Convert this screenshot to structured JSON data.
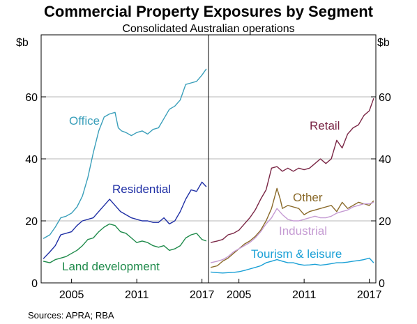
{
  "title": "Commercial Property Exposures by Segment",
  "subtitle": "Consolidated Australian operations",
  "source": "Sources:   APRA; RBA",
  "chart_data": [
    {
      "type": "line",
      "panel": "left",
      "unit_label": "$b",
      "ylim": [
        0,
        80
      ],
      "yticks": [
        0,
        20,
        40,
        60
      ],
      "xlim": [
        2002.2,
        2017.6
      ],
      "xticks": [
        2005,
        2011,
        2017
      ],
      "grid": true,
      "series": [
        {
          "name": "Office",
          "color": "#3a9fba",
          "x": [
            2002.4,
            2003.0,
            2003.5,
            2004.0,
            2004.5,
            2005.0,
            2005.5,
            2006.0,
            2006.5,
            2007.0,
            2007.5,
            2008.0,
            2008.5,
            2009.0,
            2009.3,
            2009.6,
            2010.0,
            2010.5,
            2011.0,
            2011.5,
            2012.0,
            2012.5,
            2013.0,
            2013.5,
            2014.0,
            2014.5,
            2015.0,
            2015.5,
            2016.0,
            2016.5,
            2017.0,
            2017.4
          ],
          "y": [
            14.3,
            15.5,
            18,
            21,
            21.5,
            22.5,
            24.5,
            28,
            34,
            42,
            49,
            53.5,
            54.5,
            55,
            50,
            49,
            48.5,
            47.5,
            48.5,
            49,
            48,
            49.5,
            50,
            53,
            56,
            57,
            59,
            64,
            64.5,
            65,
            67,
            69
          ]
        },
        {
          "name": "Residential",
          "color": "#1f2fa5",
          "x": [
            2002.4,
            2003.0,
            2003.5,
            2004.0,
            2004.5,
            2005.0,
            2005.5,
            2006.0,
            2006.5,
            2007.0,
            2007.5,
            2008.0,
            2008.5,
            2009.0,
            2009.5,
            2010.0,
            2010.5,
            2011.0,
            2011.5,
            2012.0,
            2012.5,
            2013.0,
            2013.5,
            2014.0,
            2014.5,
            2015.0,
            2015.5,
            2016.0,
            2016.5,
            2017.0,
            2017.4
          ],
          "y": [
            7.8,
            10,
            12,
            15.5,
            16,
            16.5,
            18.5,
            20,
            20.5,
            21,
            23,
            25,
            27,
            25,
            23,
            22,
            21,
            20.5,
            20,
            20,
            19.5,
            19.5,
            21,
            19,
            20,
            23,
            27,
            30,
            29.5,
            32.5,
            31
          ]
        },
        {
          "name": "Land development",
          "color": "#1e8a4a",
          "x": [
            2002.4,
            2003.0,
            2003.5,
            2004.0,
            2004.5,
            2005.0,
            2005.5,
            2006.0,
            2006.5,
            2007.0,
            2007.5,
            2008.0,
            2008.5,
            2009.0,
            2009.5,
            2010.0,
            2010.5,
            2011.0,
            2011.5,
            2012.0,
            2012.5,
            2013.0,
            2013.5,
            2014.0,
            2014.5,
            2015.0,
            2015.5,
            2016.0,
            2016.5,
            2017.0,
            2017.4
          ],
          "y": [
            7,
            6.5,
            7.5,
            8,
            8.5,
            9.5,
            10.5,
            12,
            14,
            14.5,
            16.5,
            18,
            19,
            18.5,
            16.5,
            16,
            14.5,
            13,
            13.5,
            13,
            12,
            11.5,
            12,
            10.5,
            11,
            12,
            14.5,
            15.5,
            16,
            14,
            13.5
          ]
        }
      ]
    },
    {
      "type": "line",
      "panel": "right",
      "unit_label": "$b",
      "ylim": [
        0,
        80
      ],
      "yticks": [
        0,
        20,
        40,
        60
      ],
      "xlim": [
        2002.2,
        2017.6
      ],
      "xticks": [
        2005,
        2011,
        2017
      ],
      "grid": true,
      "series": [
        {
          "name": "Retail",
          "color": "#7a2645",
          "x": [
            2002.4,
            2003.0,
            2003.5,
            2004.0,
            2004.5,
            2005.0,
            2005.5,
            2006.0,
            2006.5,
            2007.0,
            2007.5,
            2008.0,
            2008.5,
            2009.0,
            2009.5,
            2010.0,
            2010.5,
            2011.0,
            2011.5,
            2012.0,
            2012.5,
            2013.0,
            2013.5,
            2014.0,
            2014.5,
            2015.0,
            2015.5,
            2016.0,
            2016.5,
            2017.0,
            2017.4
          ],
          "y": [
            13,
            13.5,
            14,
            15.5,
            16,
            17,
            19,
            21,
            23.5,
            27,
            30,
            37,
            37.5,
            36,
            37,
            36,
            37,
            36.5,
            37,
            38.5,
            40,
            38.5,
            40,
            46,
            43.5,
            48,
            50,
            51,
            54,
            55.5,
            59.5
          ]
        },
        {
          "name": "Other",
          "color": "#8a6a2a",
          "x": [
            2002.4,
            2003.0,
            2003.5,
            2004.0,
            2004.5,
            2005.0,
            2005.5,
            2006.0,
            2006.5,
            2007.0,
            2007.5,
            2008.0,
            2008.5,
            2008.8,
            2009.0,
            2009.5,
            2010.0,
            2010.5,
            2011.0,
            2011.5,
            2012.0,
            2012.5,
            2013.0,
            2013.5,
            2014.0,
            2014.5,
            2015.0,
            2015.5,
            2016.0,
            2016.5,
            2017.0,
            2017.4
          ],
          "y": [
            5,
            5.5,
            7,
            8,
            9.5,
            11,
            12.5,
            13.5,
            15,
            17,
            20,
            24,
            30.5,
            27,
            24,
            25,
            24.5,
            24,
            22,
            23,
            23.5,
            24,
            24.5,
            25,
            23,
            26,
            24,
            25,
            26,
            25.5,
            25,
            26.5
          ]
        },
        {
          "name": "Industrial",
          "color": "#c59bd3",
          "x": [
            2002.4,
            2003.0,
            2003.5,
            2004.0,
            2004.5,
            2005.0,
            2005.5,
            2006.0,
            2006.5,
            2007.0,
            2007.5,
            2008.0,
            2008.5,
            2009.0,
            2009.5,
            2010.0,
            2010.5,
            2011.0,
            2011.5,
            2012.0,
            2012.5,
            2013.0,
            2013.5,
            2014.0,
            2014.5,
            2015.0,
            2015.5,
            2016.0,
            2016.5,
            2017.0,
            2017.4
          ],
          "y": [
            6.5,
            7,
            7.5,
            8.5,
            10,
            11,
            12,
            13,
            14.5,
            16.5,
            19,
            21,
            24,
            22,
            20.5,
            20,
            20,
            20.5,
            21,
            21.5,
            21,
            21,
            21.5,
            22.5,
            23,
            23.5,
            24.5,
            25,
            25.5,
            25.5,
            26
          ]
        },
        {
          "name": "Tourism & leisure",
          "color": "#1aa0d6",
          "x": [
            2002.4,
            2003.0,
            2003.5,
            2004.0,
            2004.5,
            2005.0,
            2005.5,
            2006.0,
            2006.5,
            2007.0,
            2007.5,
            2008.0,
            2008.5,
            2009.0,
            2009.5,
            2010.0,
            2010.5,
            2011.0,
            2011.5,
            2012.0,
            2012.5,
            2013.0,
            2013.5,
            2014.0,
            2014.5,
            2015.0,
            2015.5,
            2016.0,
            2016.5,
            2017.0,
            2017.4
          ],
          "y": [
            3.5,
            3.3,
            3.2,
            3.3,
            3.4,
            3.6,
            4,
            4.5,
            5,
            5.5,
            6.5,
            7,
            7.5,
            7,
            6.5,
            6.5,
            6,
            5.7,
            5.8,
            6,
            5.7,
            5.9,
            6.2,
            6.5,
            6.5,
            6.7,
            7,
            7.2,
            7.5,
            8,
            6.5
          ]
        }
      ]
    }
  ]
}
